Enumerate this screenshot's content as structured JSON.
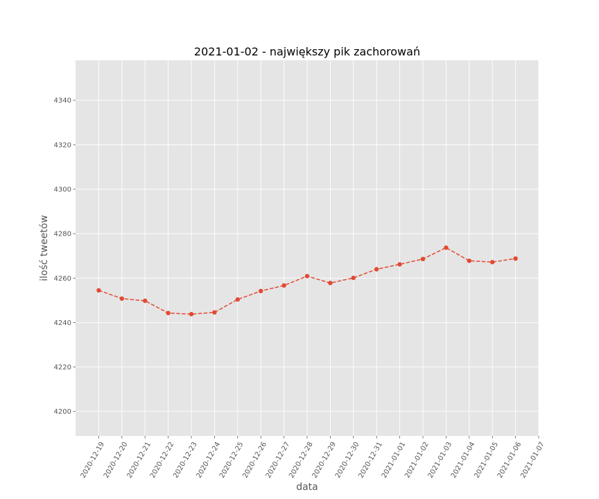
{
  "chart_data": {
    "type": "line",
    "title": "2021-01-02 - największy pik zachorowań",
    "xlabel": "data",
    "ylabel": "ilość tweetów",
    "x_ticks": [
      "2020-12-19",
      "2020-12-20",
      "2020-12-21",
      "2020-12-22",
      "2020-12-23",
      "2020-12-24",
      "2020-12-25",
      "2020-12-26",
      "2020-12-27",
      "2020-12-28",
      "2020-12-29",
      "2020-12-30",
      "2020-12-31",
      "2021-01-01",
      "2021-01-02",
      "2021-01-03",
      "2021-01-04",
      "2021-01-05",
      "2021-01-06",
      "2021-01-07"
    ],
    "y_ticks": [
      4200,
      4220,
      4240,
      4260,
      4280,
      4300,
      4320,
      4340
    ],
    "ylim": [
      4189,
      4358
    ],
    "xlim": [
      "2020-12-18",
      "2021-01-07"
    ],
    "grid": true,
    "series": [
      {
        "x": [
          "2020-12-19",
          "2020-12-20",
          "2020-12-21",
          "2020-12-22",
          "2020-12-23",
          "2020-12-24",
          "2020-12-25",
          "2020-12-26",
          "2020-12-27",
          "2020-12-28",
          "2020-12-29",
          "2020-12-30",
          "2020-12-31",
          "2021-01-01",
          "2021-01-02",
          "2021-01-03",
          "2021-01-04",
          "2021-01-05",
          "2021-01-06"
        ],
        "values": [
          4254.5,
          4250.8,
          4249.8,
          4244.3,
          4243.8,
          4244.6,
          4250.4,
          4254.2,
          4256.7,
          4260.9,
          4257.8,
          4260.1,
          4264.0,
          4266.2,
          4268.6,
          4273.7,
          4267.8,
          4267.2,
          4268.8
        ],
        "color": "#e24a33",
        "line_style": "dashed",
        "marker": "circle"
      }
    ],
    "colors": {
      "background": "#e5e5e5",
      "grid": "#ffffff",
      "series": "#e24a33"
    }
  }
}
